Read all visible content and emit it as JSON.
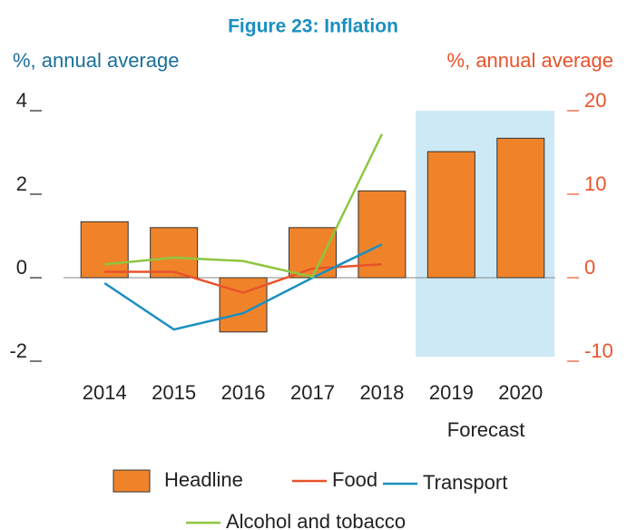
{
  "chart_data": {
    "type": "bar-line",
    "title": "Figure 23:  Inflation",
    "ylabel": "%, annual average",
    "y2label": "%, annual average",
    "categories": [
      "2014",
      "2015",
      "2016",
      "2017",
      "2018",
      "2019",
      "2020"
    ],
    "forecast": {
      "label": "Forecast",
      "from": "2019"
    },
    "ylim": [
      -2,
      4
    ],
    "yticks": [
      -2,
      0,
      2,
      4
    ],
    "y2lim": [
      -10,
      20
    ],
    "y2ticks": [
      -10,
      0,
      10,
      20
    ],
    "series": [
      {
        "name": "Headline",
        "type": "bar",
        "axis": "y2",
        "color": "#f0832a",
        "values": [
          6.7,
          6.0,
          -6.5,
          6.0,
          10.4,
          15.1,
          16.7
        ]
      },
      {
        "name": "Food",
        "type": "line",
        "axis": "y2",
        "color": "#e8532a",
        "values": [
          0.7,
          0.7,
          -1.8,
          1.1,
          1.6,
          null,
          null
        ]
      },
      {
        "name": "Transport",
        "type": "line",
        "axis": "y",
        "color": "#1a8fc0",
        "values": [
          -0.13,
          -1.24,
          -0.85,
          0,
          0.8,
          null,
          null
        ]
      },
      {
        "name": "Alcohol and tobacco",
        "type": "line",
        "axis": "y2",
        "color": "#8dc63f",
        "values": [
          1.6,
          2.4,
          2.0,
          0.1,
          17.2,
          null,
          null
        ]
      }
    ]
  }
}
